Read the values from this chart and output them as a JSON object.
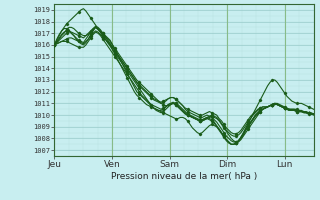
{
  "bg_color": "#c8eef0",
  "plot_bg": "#d8f0d8",
  "grid_color_major": "#99cccc",
  "grid_color_minor": "#b8e0e0",
  "grid_vert_minor": "#c8e8c8",
  "grid_vert_major": "#88bb88",
  "line_color": "#1a5c1a",
  "ylabel": "Pression niveau de la mer( hPa )",
  "yticks": [
    1007,
    1008,
    1009,
    1010,
    1011,
    1012,
    1013,
    1014,
    1015,
    1016,
    1017,
    1018,
    1019
  ],
  "ylim": [
    1006.5,
    1019.5
  ],
  "day_labels": [
    "Jeu",
    "Ven",
    "Sam",
    "Dim",
    "Lun"
  ],
  "day_positions": [
    0,
    24,
    48,
    72,
    96
  ],
  "xlim": [
    0,
    108
  ],
  "n_points": 108,
  "series": [
    [
      1016.0,
      1016.2,
      1016.5,
      1016.8,
      1017.0,
      1017.3,
      1017.5,
      1017.5,
      1017.4,
      1017.2,
      1017.0,
      1016.9,
      1016.8,
      1016.8,
      1016.9,
      1017.1,
      1017.3,
      1017.5,
      1017.4,
      1017.2,
      1017.0,
      1016.8,
      1016.6,
      1016.4,
      1016.0,
      1015.6,
      1015.2,
      1014.8,
      1014.4,
      1014.0,
      1013.6,
      1013.2,
      1012.8,
      1012.4,
      1012.0,
      1011.8,
      1011.6,
      1011.4,
      1011.2,
      1011.0,
      1010.8,
      1010.6,
      1010.5,
      1010.4,
      1010.4,
      1010.5,
      1010.7,
      1010.9,
      1011.0,
      1011.0,
      1010.9,
      1010.7,
      1010.5,
      1010.3,
      1010.1,
      1010.0,
      1009.9,
      1009.8,
      1009.7,
      1009.6,
      1009.5,
      1009.5,
      1009.6,
      1009.7,
      1009.8,
      1009.9,
      1009.8,
      1009.7,
      1009.5,
      1009.2,
      1008.9,
      1008.6,
      1008.3,
      1008.0,
      1007.8,
      1007.7,
      1007.7,
      1007.9,
      1008.2,
      1008.5,
      1008.8,
      1009.1,
      1009.4,
      1009.7,
      1010.0,
      1010.3,
      1010.5,
      1010.6,
      1010.7,
      1010.8,
      1010.9,
      1011.0,
      1010.9,
      1010.8,
      1010.7,
      1010.6,
      1010.5,
      1010.5,
      1010.5,
      1010.5,
      1010.5,
      1010.4,
      1010.4,
      1010.3,
      1010.3,
      1010.2,
      1010.2,
      1010.1
    ],
    [
      1016.0,
      1016.4,
      1016.8,
      1017.2,
      1017.5,
      1017.8,
      1018.0,
      1018.2,
      1018.4,
      1018.6,
      1018.8,
      1019.0,
      1019.1,
      1018.9,
      1018.6,
      1018.3,
      1018.0,
      1017.7,
      1017.4,
      1017.1,
      1016.8,
      1016.5,
      1016.2,
      1016.0,
      1015.6,
      1015.2,
      1014.8,
      1014.4,
      1014.0,
      1013.6,
      1013.2,
      1012.8,
      1012.4,
      1012.0,
      1011.7,
      1011.5,
      1011.3,
      1011.1,
      1010.9,
      1010.8,
      1010.7,
      1010.6,
      1010.5,
      1010.4,
      1010.3,
      1010.2,
      1010.1,
      1010.0,
      1009.9,
      1009.8,
      1009.7,
      1009.7,
      1009.8,
      1009.8,
      1009.7,
      1009.5,
      1009.2,
      1008.9,
      1008.7,
      1008.5,
      1008.4,
      1008.5,
      1008.7,
      1008.9,
      1009.1,
      1009.2,
      1009.1,
      1009.0,
      1008.8,
      1008.5,
      1008.2,
      1007.9,
      1007.7,
      1007.5,
      1007.5,
      1007.6,
      1007.8,
      1008.1,
      1008.5,
      1008.9,
      1009.3,
      1009.7,
      1010.1,
      1010.5,
      1010.9,
      1011.3,
      1011.7,
      1012.1,
      1012.5,
      1012.8,
      1013.0,
      1013.0,
      1012.8,
      1012.5,
      1012.2,
      1011.9,
      1011.6,
      1011.4,
      1011.2,
      1011.1,
      1011.0,
      1011.0,
      1011.0,
      1010.9,
      1010.8,
      1010.7,
      1010.6,
      1010.5
    ],
    [
      1016.0,
      1016.2,
      1016.4,
      1016.6,
      1016.8,
      1017.0,
      1017.1,
      1017.1,
      1017.0,
      1016.9,
      1016.8,
      1016.7,
      1016.6,
      1016.8,
      1017.0,
      1017.2,
      1017.4,
      1017.5,
      1017.3,
      1017.1,
      1016.9,
      1016.7,
      1016.5,
      1016.3,
      1016.0,
      1015.7,
      1015.4,
      1015.1,
      1014.8,
      1014.5,
      1014.2,
      1013.9,
      1013.6,
      1013.3,
      1013.0,
      1012.8,
      1012.6,
      1012.4,
      1012.2,
      1012.0,
      1011.8,
      1011.6,
      1011.4,
      1011.2,
      1011.0,
      1010.9,
      1010.8,
      1010.8,
      1010.9,
      1011.0,
      1011.0,
      1010.9,
      1010.7,
      1010.5,
      1010.3,
      1010.1,
      1010.0,
      1009.9,
      1009.8,
      1009.7,
      1009.6,
      1009.6,
      1009.7,
      1009.8,
      1009.9,
      1010.0,
      1009.9,
      1009.8,
      1009.6,
      1009.3,
      1009.0,
      1008.7,
      1008.5,
      1008.3,
      1008.2,
      1008.2,
      1008.3,
      1008.5,
      1008.8,
      1009.1,
      1009.4,
      1009.7,
      1010.0,
      1010.2,
      1010.4,
      1010.6,
      1010.7,
      1010.7,
      1010.7,
      1010.8,
      1010.9,
      1011.0,
      1011.0,
      1010.9,
      1010.8,
      1010.7,
      1010.6,
      1010.5,
      1010.5,
      1010.5,
      1010.4,
      1010.4,
      1010.3,
      1010.3,
      1010.2,
      1010.2,
      1010.1,
      1010.1
    ],
    [
      1016.0,
      1016.1,
      1016.2,
      1016.3,
      1016.4,
      1016.5,
      1016.6,
      1016.6,
      1016.5,
      1016.4,
      1016.3,
      1016.2,
      1016.1,
      1016.3,
      1016.5,
      1016.8,
      1017.0,
      1017.2,
      1017.1,
      1016.9,
      1016.7,
      1016.5,
      1016.3,
      1016.1,
      1015.8,
      1015.5,
      1015.2,
      1014.9,
      1014.6,
      1014.3,
      1014.0,
      1013.7,
      1013.4,
      1013.1,
      1012.8,
      1012.6,
      1012.4,
      1012.2,
      1012.0,
      1011.8,
      1011.6,
      1011.4,
      1011.3,
      1011.2,
      1011.1,
      1011.2,
      1011.3,
      1011.4,
      1011.5,
      1011.5,
      1011.4,
      1011.2,
      1011.0,
      1010.8,
      1010.6,
      1010.5,
      1010.4,
      1010.3,
      1010.2,
      1010.1,
      1010.0,
      1010.0,
      1010.1,
      1010.2,
      1010.3,
      1010.2,
      1010.1,
      1010.0,
      1009.7,
      1009.5,
      1009.2,
      1008.9,
      1008.7,
      1008.5,
      1008.4,
      1008.4,
      1008.5,
      1008.7,
      1009.0,
      1009.3,
      1009.6,
      1009.9,
      1010.1,
      1010.3,
      1010.5,
      1010.6,
      1010.7,
      1010.7,
      1010.7,
      1010.8,
      1010.9,
      1010.9,
      1010.9,
      1010.8,
      1010.7,
      1010.6,
      1010.5,
      1010.5,
      1010.4,
      1010.4,
      1010.4,
      1010.3,
      1010.3,
      1010.3,
      1010.2,
      1010.2,
      1010.1,
      1010.1
    ],
    [
      1016.0,
      1016.3,
      1016.6,
      1016.9,
      1017.1,
      1017.2,
      1017.2,
      1017.0,
      1016.8,
      1016.6,
      1016.4,
      1016.3,
      1016.2,
      1016.5,
      1016.8,
      1017.1,
      1017.4,
      1017.6,
      1017.5,
      1017.3,
      1017.0,
      1016.7,
      1016.4,
      1016.1,
      1015.8,
      1015.5,
      1015.2,
      1014.9,
      1014.6,
      1014.3,
      1014.0,
      1013.7,
      1013.4,
      1013.1,
      1012.8,
      1012.5,
      1012.3,
      1012.1,
      1011.9,
      1011.7,
      1011.5,
      1011.3,
      1011.2,
      1011.1,
      1011.0,
      1011.1,
      1011.2,
      1011.4,
      1011.5,
      1011.5,
      1011.4,
      1011.2,
      1011.0,
      1010.8,
      1010.5,
      1010.3,
      1010.2,
      1010.1,
      1010.0,
      1009.9,
      1009.8,
      1009.8,
      1009.9,
      1010.0,
      1009.9,
      1009.8,
      1009.6,
      1009.4,
      1009.1,
      1008.8,
      1008.5,
      1008.2,
      1008.0,
      1007.8,
      1007.7,
      1007.7,
      1007.8,
      1008.0,
      1008.3,
      1008.7,
      1009.0,
      1009.3,
      1009.6,
      1009.9,
      1010.1,
      1010.3,
      1010.5,
      1010.6,
      1010.7,
      1010.8,
      1010.9,
      1011.0,
      1010.9,
      1010.8,
      1010.7,
      1010.6,
      1010.5,
      1010.4,
      1010.4,
      1010.4,
      1010.4,
      1010.3,
      1010.3,
      1010.3,
      1010.2,
      1010.2,
      1010.1,
      1010.1
    ],
    [
      1016.0,
      1016.5,
      1016.9,
      1017.2,
      1017.4,
      1017.4,
      1017.3,
      1017.0,
      1016.8,
      1016.5,
      1016.3,
      1016.1,
      1016.0,
      1016.2,
      1016.5,
      1016.9,
      1017.2,
      1017.5,
      1017.4,
      1017.1,
      1016.8,
      1016.5,
      1016.2,
      1015.9,
      1015.6,
      1015.3,
      1015.0,
      1014.7,
      1014.4,
      1014.1,
      1013.8,
      1013.5,
      1013.2,
      1012.9,
      1012.6,
      1012.3,
      1012.0,
      1011.7,
      1011.4,
      1011.1,
      1010.8,
      1010.6,
      1010.4,
      1010.3,
      1010.2,
      1010.3,
      1010.5,
      1010.7,
      1010.9,
      1011.0,
      1010.9,
      1010.7,
      1010.5,
      1010.3,
      1010.1,
      1010.0,
      1009.9,
      1009.8,
      1009.7,
      1009.6,
      1009.5,
      1009.6,
      1009.7,
      1009.8,
      1009.7,
      1009.6,
      1009.4,
      1009.1,
      1008.8,
      1008.5,
      1008.2,
      1007.9,
      1007.7,
      1007.5,
      1007.5,
      1007.6,
      1007.8,
      1008.1,
      1008.4,
      1008.8,
      1009.1,
      1009.4,
      1009.7,
      1010.0,
      1010.2,
      1010.4,
      1010.5,
      1010.6,
      1010.7,
      1010.8,
      1010.9,
      1011.0,
      1010.9,
      1010.8,
      1010.7,
      1010.6,
      1010.5,
      1010.4,
      1010.4,
      1010.4,
      1010.3,
      1010.3,
      1010.3,
      1010.2,
      1010.2,
      1010.2,
      1010.1,
      1010.1
    ],
    [
      1016.0,
      1016.1,
      1016.2,
      1016.3,
      1016.3,
      1016.3,
      1016.2,
      1016.1,
      1016.0,
      1015.9,
      1015.8,
      1015.8,
      1015.8,
      1016.0,
      1016.3,
      1016.6,
      1016.9,
      1017.1,
      1017.0,
      1016.8,
      1016.5,
      1016.2,
      1015.9,
      1015.6,
      1015.3,
      1015.0,
      1014.7,
      1014.4,
      1014.1,
      1013.8,
      1013.5,
      1013.2,
      1012.9,
      1012.6,
      1012.3,
      1012.0,
      1011.7,
      1011.5,
      1011.3,
      1011.1,
      1010.9,
      1010.8,
      1010.7,
      1010.6,
      1010.5,
      1010.6,
      1010.7,
      1010.9,
      1011.0,
      1011.1,
      1011.0,
      1010.8,
      1010.6,
      1010.4,
      1010.2,
      1010.0,
      1009.9,
      1009.8,
      1009.7,
      1009.6,
      1009.5,
      1009.5,
      1009.6,
      1009.7,
      1009.6,
      1009.5,
      1009.3,
      1009.0,
      1008.7,
      1008.4,
      1008.1,
      1007.8,
      1007.6,
      1007.5,
      1007.5,
      1007.6,
      1007.8,
      1008.1,
      1008.4,
      1008.8,
      1009.1,
      1009.4,
      1009.7,
      1010.0,
      1010.2,
      1010.4,
      1010.5,
      1010.6,
      1010.7,
      1010.8,
      1010.9,
      1011.0,
      1010.9,
      1010.8,
      1010.7,
      1010.6,
      1010.5,
      1010.4,
      1010.4,
      1010.4,
      1010.3,
      1010.3,
      1010.3,
      1010.2,
      1010.2,
      1010.1,
      1010.1,
      1010.0
    ]
  ]
}
